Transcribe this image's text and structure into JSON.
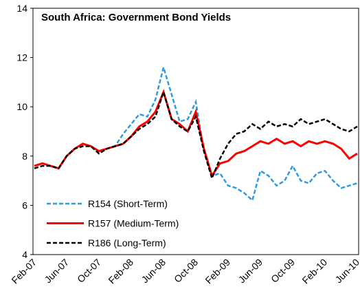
{
  "chart_data": {
    "type": "line",
    "title": "South Africa: Government Bond Yields",
    "categories": [
      "Feb-07",
      null,
      null,
      null,
      "Jun-07",
      null,
      null,
      null,
      "Oct-07",
      null,
      null,
      null,
      "Feb-08",
      null,
      null,
      null,
      "Jun-08",
      null,
      null,
      null,
      "Oct-08",
      null,
      null,
      null,
      "Feb-09",
      null,
      null,
      null,
      "Jun-09",
      null,
      null,
      null,
      "Oct-09",
      null,
      null,
      null,
      "Feb-10",
      null,
      null,
      null,
      "Jun-10"
    ],
    "series": [
      {
        "name": "R154 (Short-Term)",
        "color": "#2e9be0",
        "dashed": true,
        "values": [
          7.6,
          7.7,
          7.6,
          7.5,
          8.0,
          8.3,
          8.5,
          8.4,
          8.2,
          8.3,
          8.4,
          8.9,
          9.3,
          9.7,
          9.6,
          10.3,
          11.6,
          10.5,
          9.4,
          9.5,
          10.2,
          8.2,
          7.2,
          7.3,
          6.8,
          6.7,
          6.5,
          6.2,
          7.4,
          7.2,
          6.8,
          7.0,
          7.6,
          7.0,
          6.9,
          7.3,
          7.4,
          7.0,
          6.7,
          6.8,
          6.9
        ]
      },
      {
        "name": "R157 (Medium-Term)",
        "color": "#ff0000",
        "dashed": false,
        "values": [
          7.6,
          7.7,
          7.6,
          7.5,
          8.0,
          8.3,
          8.5,
          8.4,
          8.2,
          8.3,
          8.4,
          8.5,
          8.8,
          9.2,
          9.4,
          9.8,
          10.6,
          9.5,
          9.3,
          9.0,
          9.8,
          8.3,
          7.2,
          7.7,
          7.8,
          8.1,
          8.2,
          8.4,
          8.6,
          8.5,
          8.7,
          8.5,
          8.6,
          8.4,
          8.6,
          8.5,
          8.6,
          8.5,
          8.3,
          7.9,
          8.1
        ]
      },
      {
        "name": "R186 (Long-Term)",
        "color": "#000000",
        "dashed": true,
        "values": [
          7.5,
          7.6,
          7.6,
          7.5,
          8.0,
          8.3,
          8.4,
          8.4,
          8.1,
          8.3,
          8.4,
          8.5,
          8.8,
          9.1,
          9.3,
          9.6,
          10.6,
          9.5,
          9.2,
          9.0,
          9.6,
          8.2,
          7.1,
          7.9,
          8.5,
          8.9,
          9.0,
          9.3,
          9.1,
          9.4,
          9.2,
          9.3,
          9.2,
          9.5,
          9.3,
          9.4,
          9.5,
          9.3,
          9.1,
          9.0,
          9.2
        ]
      }
    ],
    "ylim": [
      4,
      14
    ],
    "yticks": [
      4,
      6,
      8,
      10,
      12,
      14
    ],
    "legend": "lower-left"
  }
}
